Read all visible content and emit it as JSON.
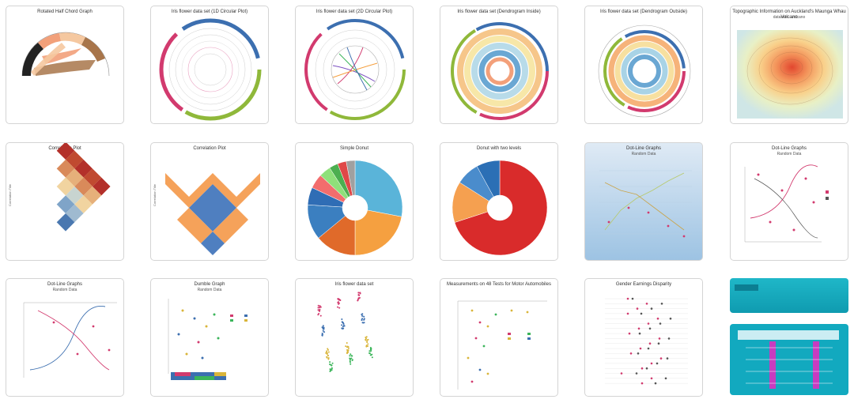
{
  "tiles": [
    {
      "id": "t1",
      "title": "Rotated Half Chord Graph"
    },
    {
      "id": "t2",
      "title": "Iris flower data set (1D Circular Plot)"
    },
    {
      "id": "t3",
      "title": "Iris flower data set (2D Circular Plot)"
    },
    {
      "id": "t4",
      "title": "Iris flower data set (Dendrogram Inside)"
    },
    {
      "id": "t5",
      "title": "Iris flower data set (Dendrogram Outside)"
    },
    {
      "id": "t6",
      "title": "Topographic Information on Auckland's Maunga Whau Volcano",
      "subtitle": "datasets - volcano"
    },
    {
      "id": "t7",
      "title": "Correlation Plot",
      "ylabel": "Correlation Title"
    },
    {
      "id": "t8",
      "title": "Correlation Plot",
      "ylabel": "Correlation Title"
    },
    {
      "id": "t9",
      "title": "Simple Donut"
    },
    {
      "id": "t10",
      "title": "Donut with two levels"
    },
    {
      "id": "t11",
      "title": "Dot-Line Graphs",
      "subtitle": "Random Data"
    },
    {
      "id": "t12",
      "title": "Dot-Line Graphs",
      "subtitle": "Random Data"
    },
    {
      "id": "t13",
      "title": "Dot-Line Graphs",
      "subtitle": "Random Data"
    },
    {
      "id": "t14",
      "title": "Dumble Graph",
      "subtitle": "Random Data"
    },
    {
      "id": "t15",
      "title": "Iris flower data set"
    },
    {
      "id": "t16",
      "title": "Measurements on 48 Tests for Motor Automobiles"
    },
    {
      "id": "t17",
      "title": "Gender Earnings Disparity"
    },
    {
      "id": "t18",
      "title": ""
    },
    {
      "id": "t19",
      "title": ""
    }
  ],
  "chart_data": [
    {
      "type": "chord",
      "title": "Rotated Half Chord Graph"
    },
    {
      "type": "circular",
      "title": "Iris flower data set (1D Circular Plot)"
    },
    {
      "type": "circular",
      "title": "Iris flower data set (2D Circular Plot)"
    },
    {
      "type": "circular",
      "title": "Iris flower data set (Dendrogram Inside)"
    },
    {
      "type": "circular",
      "title": "Iris flower data set (Dendrogram Outside)"
    },
    {
      "type": "heatmap",
      "title": "Topographic Information on Auckland's Maunga Whau Volcano",
      "subtitle": "datasets - volcano"
    },
    {
      "type": "heatmap",
      "title": "Correlation Plot",
      "ylabel": "Correlation Title"
    },
    {
      "type": "heatmap",
      "title": "Correlation Plot",
      "ylabel": "Correlation Title"
    },
    {
      "type": "pie",
      "title": "Simple Donut",
      "values": [
        28,
        22,
        14,
        12,
        6,
        5,
        4,
        3,
        3,
        3
      ],
      "colors": [
        "#5ab4d9",
        "#f5a040",
        "#e06a2a",
        "#3b7fc0",
        "#2f6db5",
        "#f26d6d",
        "#8fe07a",
        "#4caf50",
        "#e04848",
        "#a0a0a0"
      ]
    },
    {
      "type": "pie",
      "title": "Donut with two levels",
      "values": [
        70,
        14,
        8,
        8
      ],
      "colors": [
        "#d92b2b",
        "#f5a050",
        "#4a8ccc",
        "#2b6fb5"
      ]
    },
    {
      "type": "line",
      "title": "Dot-Line Graphs",
      "subtitle": "Random Data"
    },
    {
      "type": "line",
      "title": "Dot-Line Graphs",
      "subtitle": "Random Data"
    },
    {
      "type": "line",
      "title": "Dot-Line Graphs",
      "subtitle": "Random Data"
    },
    {
      "type": "scatter",
      "title": "Dumble Graph",
      "subtitle": "Random Data"
    },
    {
      "type": "scatter",
      "title": "Iris flower data set"
    },
    {
      "type": "scatter",
      "title": "Measurements on 48 Tests for Motor Automobiles"
    },
    {
      "type": "scatter",
      "title": "Gender Earnings Disparity"
    }
  ]
}
